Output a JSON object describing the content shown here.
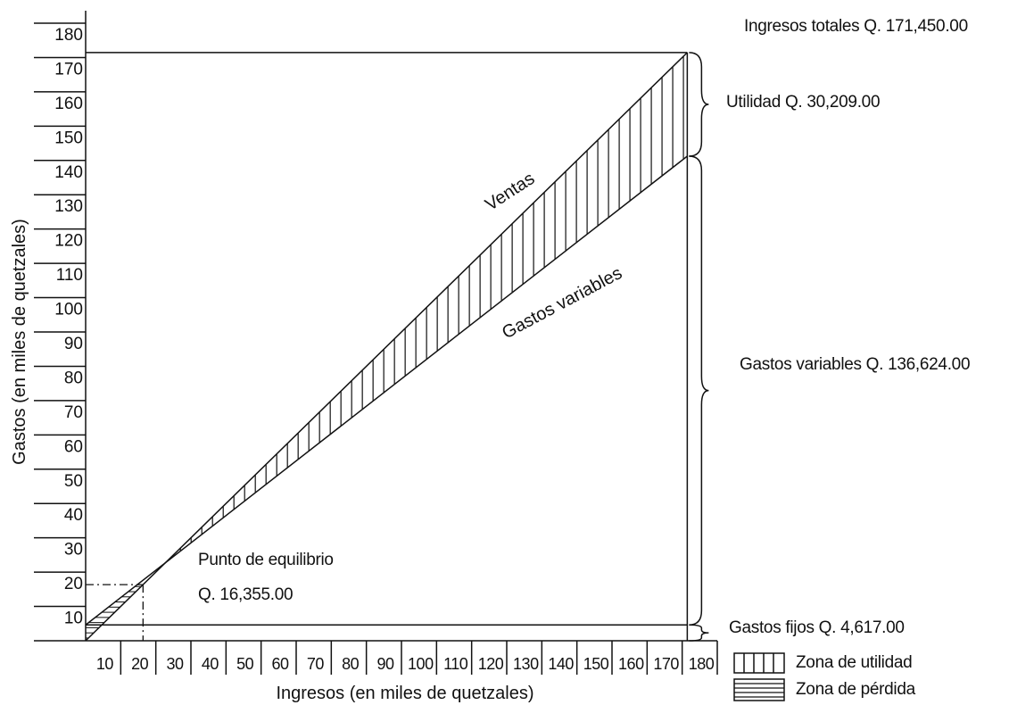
{
  "chart_data": {
    "type": "line",
    "title": "",
    "xlabel": "Ingresos (en miles de quetzales)",
    "ylabel": "Gastos (en miles de quetzales)",
    "xlim": [
      0,
      180
    ],
    "ylim": [
      0,
      180
    ],
    "x_ticks": [
      "10",
      "20",
      "30",
      "40",
      "50",
      "60",
      "70",
      "80",
      "90",
      "100",
      "110",
      "120",
      "130",
      "140",
      "150",
      "160",
      "170",
      "180"
    ],
    "y_ticks": [
      "10",
      "20",
      "30",
      "40",
      "50",
      "60",
      "70",
      "80",
      "90",
      "100",
      "110",
      "120",
      "130",
      "140",
      "150",
      "160",
      "170",
      "180"
    ],
    "series": [
      {
        "name": "Ventas",
        "x": [
          0,
          171.45
        ],
        "y": [
          0,
          171.45
        ]
      },
      {
        "name": "Gastos variables",
        "x": [
          0,
          171.45
        ],
        "y": [
          4.617,
          141.241
        ]
      }
    ],
    "fixed_costs": {
      "y": 4.617
    },
    "break_even": {
      "x": 16.355,
      "y": 16.355
    }
  },
  "annotations": {
    "total_income": "Ingresos totales Q. 171,450.00",
    "profit": "Utilidad Q. 30,209.00",
    "variable_costs": "Gastos variables Q. 136,624.00",
    "fixed_costs": "Gastos fijos Q. 4,617.00",
    "break_even_title": "Punto de equilibrio",
    "break_even_value": "Q. 16,355.00"
  },
  "legend": {
    "profit_zone": "Zona de utilidad",
    "loss_zone": "Zona de pérdida"
  }
}
